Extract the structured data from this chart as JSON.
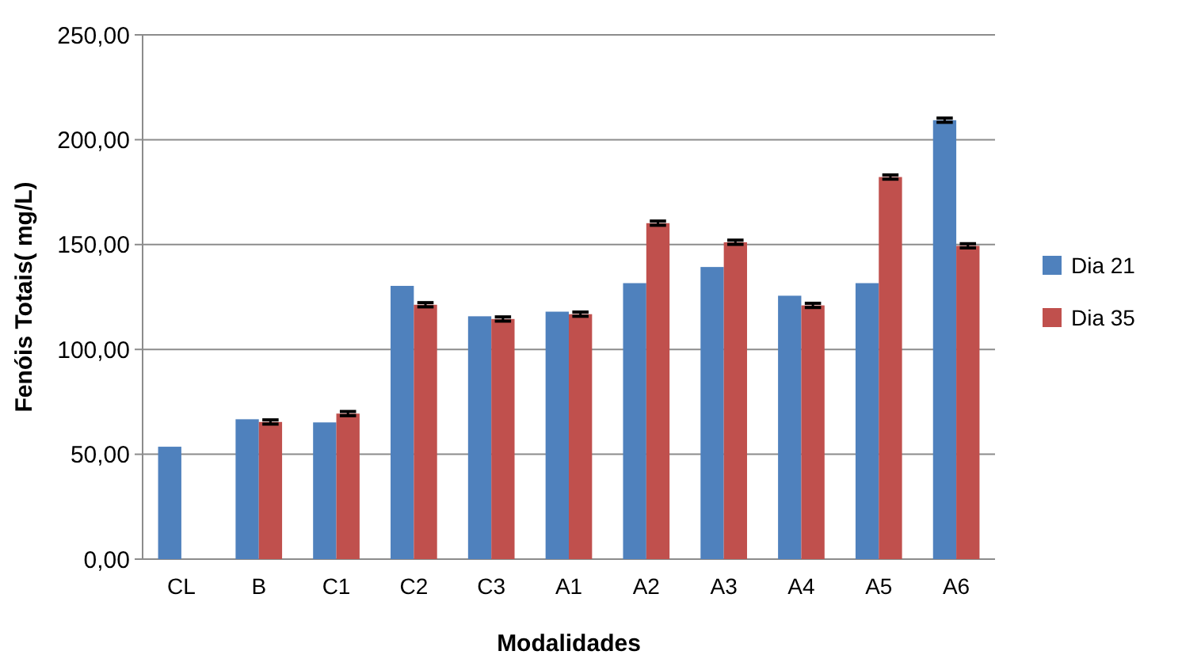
{
  "chart_data": {
    "type": "bar",
    "xlabel": "Modalidades",
    "ylabel": "Fenóis Totais( mg/L)",
    "categories": [
      "CL",
      "B",
      "C1",
      "C2",
      "C3",
      "A1",
      "A2",
      "A3",
      "A4",
      "A5",
      "A6"
    ],
    "series": [
      {
        "name": "Dia 21",
        "color": "#4f81bd",
        "values": [
          53.6,
          66.7,
          65.2,
          130.3,
          115.8,
          118,
          131.6,
          139.3,
          125.6,
          131.6,
          209.3
        ],
        "errors": [
          null,
          null,
          null,
          null,
          null,
          null,
          null,
          null,
          null,
          null,
          1
        ]
      },
      {
        "name": "Dia 35",
        "color": "#c0504d",
        "values": [
          null,
          65.4,
          69.4,
          121.3,
          114.5,
          116.8,
          160.2,
          151.1,
          121,
          182.2,
          149.4
        ],
        "errors": [
          null,
          1,
          1,
          1,
          1,
          1,
          1,
          1,
          1,
          1,
          1
        ]
      }
    ],
    "ylim": [
      0,
      250
    ],
    "yticks": [
      {
        "value": 0,
        "label": "0,00"
      },
      {
        "value": 50,
        "label": "50,00"
      },
      {
        "value": 100,
        "label": "100,00"
      },
      {
        "value": 150,
        "label": "150,00"
      },
      {
        "value": 200,
        "label": "200,00"
      },
      {
        "value": 250,
        "label": "250,00"
      }
    ],
    "grid": "y",
    "legend": "right"
  }
}
